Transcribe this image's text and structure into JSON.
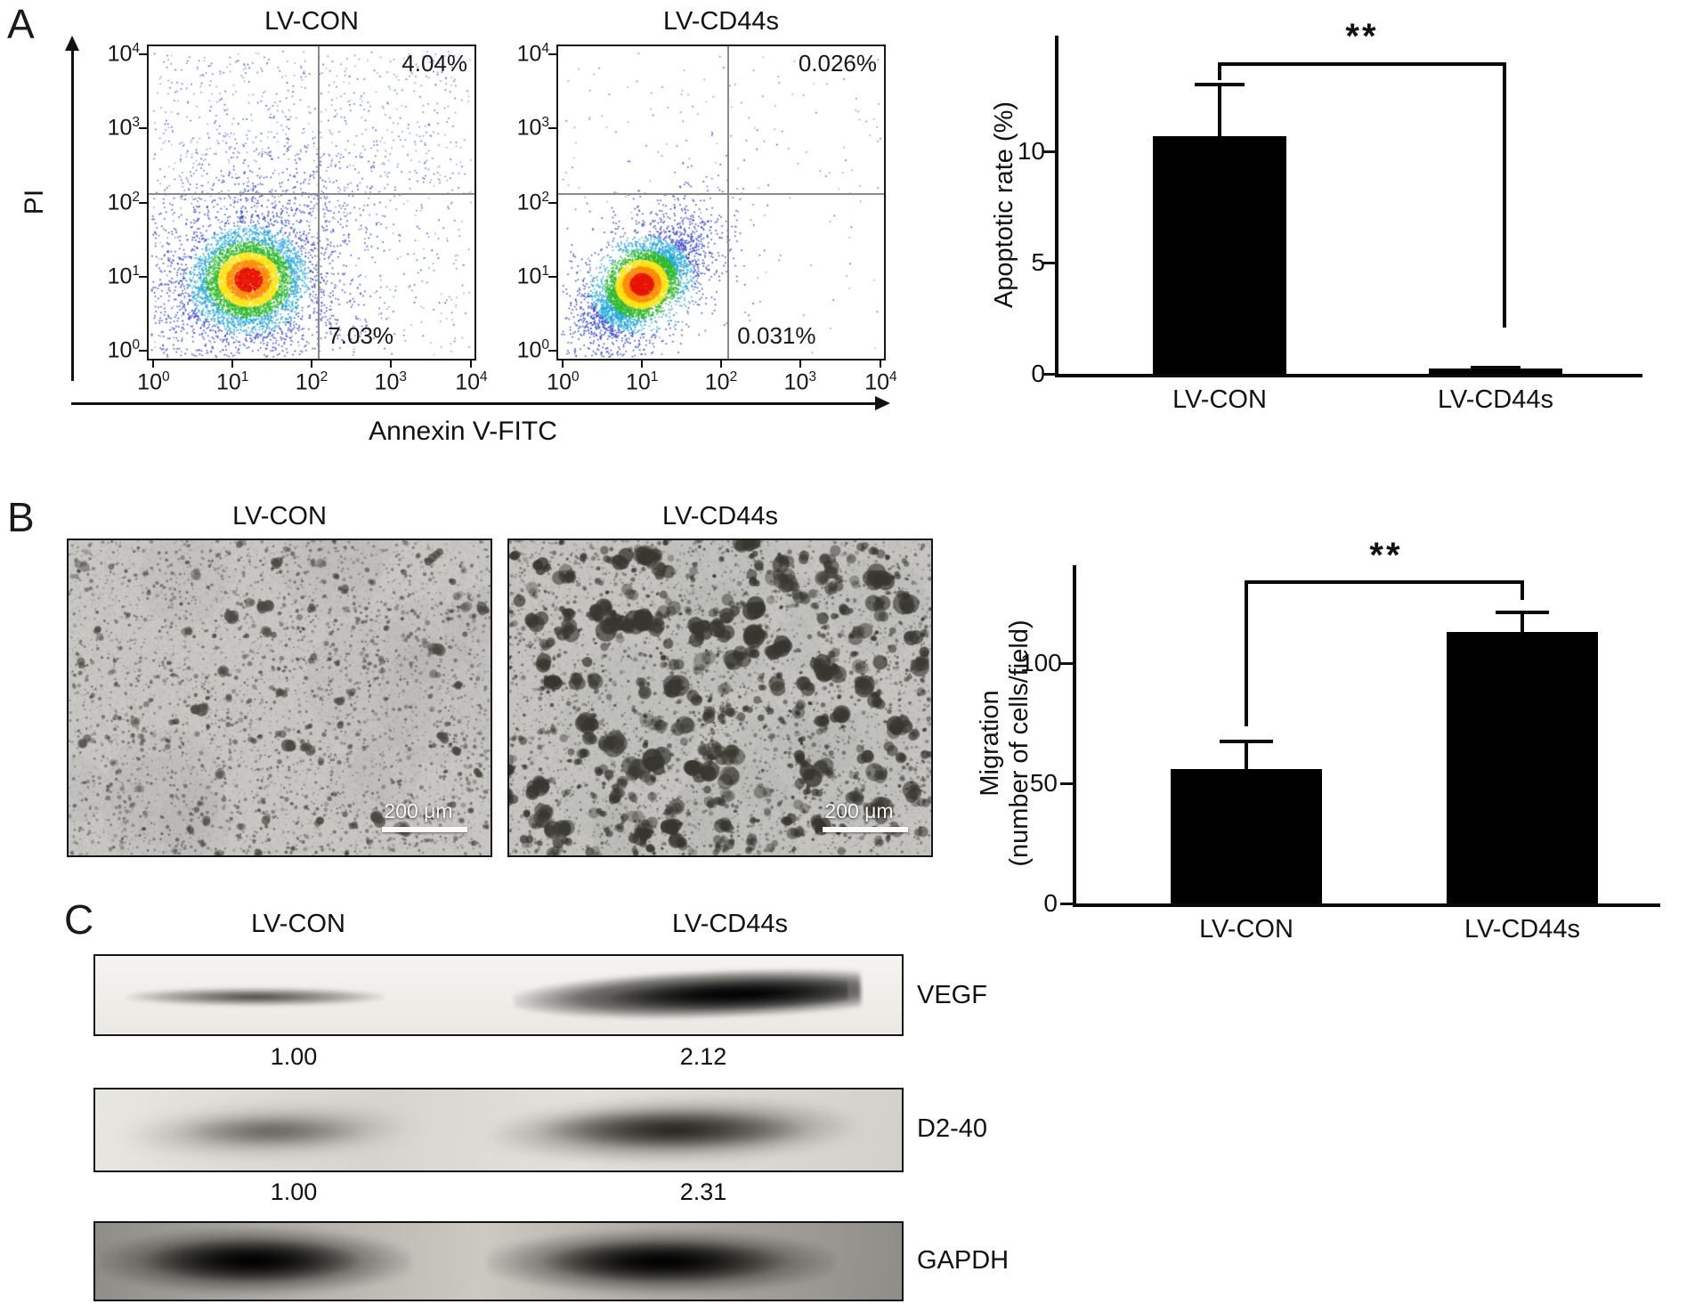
{
  "panelA": {
    "label": "A",
    "ylabel": "PI",
    "xlabel": "Annexin V-FITC",
    "tick_exponents": [
      "4",
      "3",
      "2",
      "1",
      "0"
    ],
    "plots": [
      {
        "title": "LV-CON",
        "upper_right": "4.04%",
        "lower_right": "7.03%"
      },
      {
        "title": "LV-CD44s",
        "upper_right": "0.026%",
        "lower_right": "0.031%"
      }
    ]
  },
  "panelB": {
    "label": "B",
    "images": [
      {
        "title": "LV-CON",
        "scale_bar": "200 μm"
      },
      {
        "title": "LV-CD44s",
        "scale_bar": "200 μm"
      }
    ]
  },
  "panelC": {
    "label": "C",
    "lane_labels": [
      "LV-CON",
      "LV-CD44s"
    ],
    "blots": [
      {
        "name": "VEGF",
        "quant": [
          "1.00",
          "2.12"
        ]
      },
      {
        "name": "D2-40",
        "quant": [
          "1.00",
          "2.31"
        ]
      },
      {
        "name": "GAPDH",
        "quant": []
      }
    ]
  },
  "chart_data": [
    {
      "type": "bar",
      "panel": "A",
      "title": "Apoptotic rate",
      "categories": [
        "LV-CON",
        "LV-CD44s"
      ],
      "values": [
        10.7,
        0.25
      ],
      "errors": [
        2.4,
        0.12
      ],
      "ylabel": "Apoptotic rate (%)",
      "yticks": [
        0,
        5,
        10
      ],
      "ylim": [
        0,
        15.6
      ],
      "significance": "**",
      "bar_color": "#000000",
      "legend": "none",
      "grid": false
    },
    {
      "type": "bar",
      "panel": "B",
      "title": "Migration",
      "categories": [
        "LV-CON",
        "LV-CD44s"
      ],
      "values": [
        56,
        113
      ],
      "errors": [
        12,
        9
      ],
      "ylabel": "Migration (number of cells/field)",
      "ylabel_lines": [
        "Migration",
        "(number of cells/field)"
      ],
      "yticks": [
        0,
        50,
        100
      ],
      "ylim": [
        0,
        134
      ],
      "significance": "**",
      "bar_color": "#000000",
      "legend": "none",
      "grid": false
    }
  ]
}
